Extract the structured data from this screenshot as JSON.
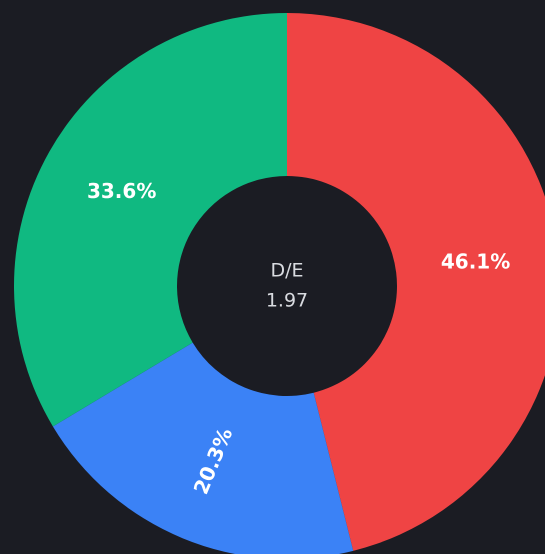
{
  "chart_data": {
    "type": "donut",
    "values": [
      46.1,
      20.3,
      33.6
    ],
    "value_labels": [
      "46.1%",
      "20.3%",
      "33.6%"
    ],
    "colors": [
      "#ef4444",
      "#3b82f6",
      "#10b981"
    ],
    "center_label": "D/E",
    "center_value": "1.97"
  }
}
